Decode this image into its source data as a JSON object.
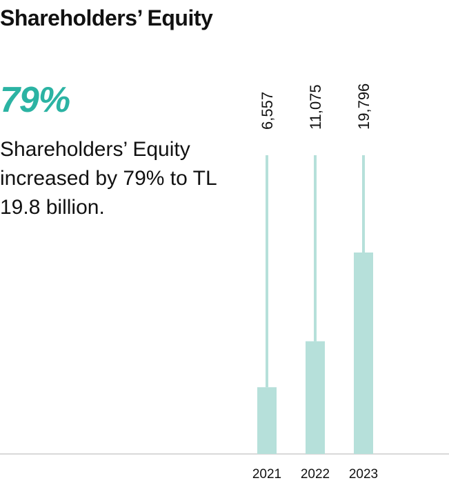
{
  "header": {
    "title": "Shareholders’ Equity"
  },
  "highlight": {
    "stat": "79%",
    "description": "Shareholders’ Equity increased by 79% to TL 19.8 billion."
  },
  "colors": {
    "accent": "#2bb3a3",
    "bar": "#b6e0da",
    "axis": "#d9d9d9"
  },
  "chart_data": {
    "type": "bar",
    "categories": [
      "2021",
      "2022",
      "2023"
    ],
    "values": [
      6557,
      11075,
      19796
    ],
    "value_labels": [
      "6,557",
      "11,075",
      "19,796"
    ],
    "ylim": [
      0,
      22000
    ],
    "grid": false,
    "legend": "none"
  }
}
